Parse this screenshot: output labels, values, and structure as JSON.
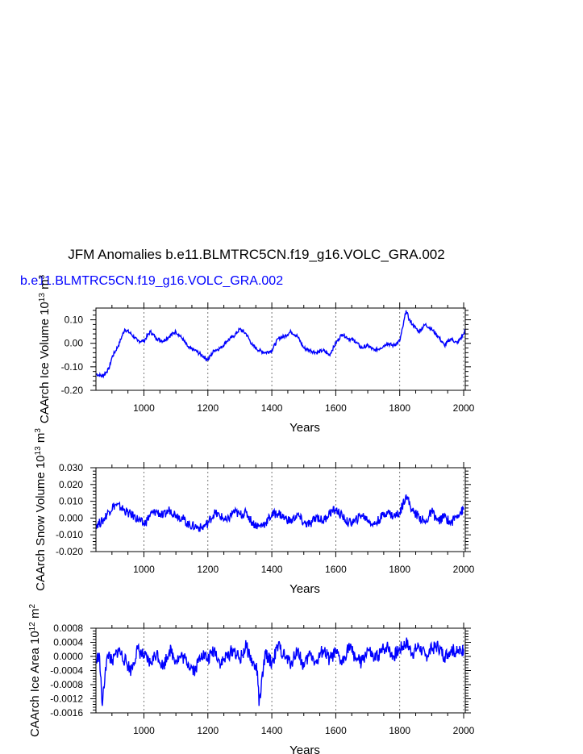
{
  "title": "JFM Anomalies b.e11.BLMTRC5CN.f19_g16.VOLC_GRA.002",
  "series_label": "b.e11.BLMTRC5CN.f19_g16.VOLC_GRA.002",
  "series_color": "#0000ff",
  "chart_data": [
    {
      "type": "line",
      "title": "",
      "xlabel": "Years",
      "ylabel_parts": [
        "CAArch Ice Volume 10",
        "13",
        " m",
        "3"
      ],
      "xlim": [
        850,
        2005
      ],
      "ylim": [
        -0.2,
        0.15
      ],
      "xticks": [
        1000,
        1200,
        1400,
        1600,
        1800,
        2000
      ],
      "yticks": [
        -0.2,
        -0.1,
        0.0,
        0.1
      ],
      "ytick_labels": [
        "-0.20",
        "-0.10",
        "0.00",
        "0.10"
      ],
      "grid": "vertical dashed at x ticks",
      "series": [
        {
          "x": [
            850,
            870,
            890,
            900,
            920,
            940,
            960,
            980,
            1000,
            1020,
            1040,
            1060,
            1080,
            1100,
            1120,
            1140,
            1160,
            1180,
            1200,
            1220,
            1240,
            1260,
            1280,
            1300,
            1320,
            1340,
            1360,
            1380,
            1400,
            1420,
            1440,
            1460,
            1480,
            1500,
            1520,
            1540,
            1560,
            1580,
            1600,
            1620,
            1640,
            1660,
            1680,
            1700,
            1720,
            1740,
            1760,
            1780,
            1800,
            1810,
            1820,
            1830,
            1840,
            1860,
            1880,
            1900,
            1920,
            1940,
            1960,
            1980,
            2000,
            2005
          ],
          "y": [
            -0.13,
            -0.14,
            -0.11,
            -0.06,
            -0.01,
            0.06,
            0.04,
            0.01,
            0.01,
            0.05,
            0.02,
            0.01,
            0.03,
            0.05,
            0.02,
            -0.02,
            -0.03,
            -0.05,
            -0.07,
            -0.03,
            -0.02,
            0.01,
            0.03,
            0.06,
            0.04,
            -0.01,
            -0.03,
            -0.04,
            -0.03,
            0.02,
            0.03,
            0.05,
            0.03,
            -0.02,
            -0.03,
            -0.04,
            -0.03,
            -0.05,
            0.0,
            0.04,
            0.02,
            0.01,
            -0.02,
            -0.01,
            -0.03,
            -0.02,
            0.0,
            -0.01,
            0.01,
            0.07,
            0.14,
            0.1,
            0.08,
            0.05,
            0.08,
            0.06,
            0.03,
            -0.01,
            0.02,
            0.0,
            0.04,
            0.06
          ]
        }
      ]
    },
    {
      "type": "line",
      "title": "",
      "xlabel": "Years",
      "ylabel_parts": [
        "CAArch Snow Volume 10",
        "13",
        " m",
        "3"
      ],
      "xlim": [
        850,
        2005
      ],
      "ylim": [
        -0.02,
        0.03
      ],
      "xticks": [
        1000,
        1200,
        1400,
        1600,
        1800,
        2000
      ],
      "yticks": [
        -0.02,
        -0.01,
        0.0,
        0.01,
        0.02,
        0.03
      ],
      "ytick_labels": [
        "-0.020",
        "-0.010",
        "0.000",
        "0.010",
        "0.020",
        "0.030"
      ],
      "grid": "vertical dashed at x ticks",
      "series": [
        {
          "x": [
            850,
            870,
            890,
            910,
            930,
            950,
            970,
            990,
            1000,
            1020,
            1040,
            1060,
            1080,
            1100,
            1120,
            1140,
            1160,
            1180,
            1200,
            1220,
            1240,
            1260,
            1280,
            1300,
            1320,
            1340,
            1360,
            1380,
            1400,
            1420,
            1440,
            1460,
            1480,
            1500,
            1520,
            1540,
            1560,
            1580,
            1600,
            1620,
            1640,
            1660,
            1680,
            1700,
            1720,
            1740,
            1760,
            1780,
            1800,
            1820,
            1840,
            1860,
            1880,
            1900,
            1920,
            1940,
            1960,
            1980,
            2000
          ],
          "y": [
            -0.004,
            -0.002,
            0.004,
            0.008,
            0.006,
            0.003,
            0.001,
            -0.002,
            -0.004,
            0.002,
            0.004,
            0.001,
            0.005,
            0.002,
            0.0,
            -0.004,
            -0.005,
            -0.006,
            -0.003,
            0.003,
            0.001,
            -0.002,
            0.004,
            0.002,
            0.003,
            -0.003,
            -0.005,
            -0.003,
            0.002,
            0.003,
            0.0,
            -0.002,
            0.002,
            -0.003,
            -0.004,
            0.001,
            -0.002,
            0.003,
            0.005,
            0.001,
            -0.003,
            -0.002,
            0.002,
            -0.001,
            -0.004,
            0.0,
            0.004,
            0.001,
            0.003,
            0.014,
            0.004,
            0.001,
            -0.003,
            0.004,
            -0.002,
            0.001,
            -0.003,
            0.002,
            0.005
          ]
        }
      ]
    },
    {
      "type": "line",
      "title": "",
      "xlabel": "Years",
      "ylabel_parts": [
        "CAArch Ice Area 10",
        "12",
        " m",
        "2"
      ],
      "xlim": [
        850,
        2005
      ],
      "ylim": [
        -0.0016,
        0.0008
      ],
      "xticks": [
        1000,
        1200,
        1400,
        1600,
        1800,
        2000
      ],
      "yticks": [
        -0.0016,
        -0.0012,
        -0.0008,
        -0.0004,
        0.0,
        0.0004,
        0.0008
      ],
      "ytick_labels": [
        "-0.0016",
        "-0.0012",
        "-0.0008",
        "-0.0004",
        "0.0000",
        "0.0004",
        "0.0008"
      ],
      "grid": "vertical dashed at x ticks",
      "series": [
        {
          "x": [
            850,
            860,
            870,
            880,
            890,
            900,
            920,
            940,
            960,
            980,
            1000,
            1020,
            1040,
            1060,
            1080,
            1100,
            1120,
            1140,
            1160,
            1180,
            1200,
            1220,
            1240,
            1260,
            1280,
            1300,
            1320,
            1340,
            1355,
            1360,
            1380,
            1400,
            1420,
            1440,
            1460,
            1480,
            1500,
            1520,
            1540,
            1560,
            1580,
            1600,
            1620,
            1640,
            1660,
            1680,
            1700,
            1720,
            1740,
            1760,
            1780,
            1800,
            1820,
            1840,
            1860,
            1880,
            1900,
            1920,
            1940,
            1960,
            1980,
            2000
          ],
          "y": [
            -0.0002,
            0.0001,
            -0.0014,
            -0.0003,
            0.0001,
            -0.0002,
            0.0002,
            -0.0001,
            -0.0004,
            0.0002,
            0.0,
            -0.0002,
            0.0001,
            -0.0003,
            0.0002,
            -0.0001,
            0.0,
            -0.0002,
            -0.0004,
            0.0001,
            -0.0001,
            0.0002,
            -0.0002,
            0.0,
            0.0002,
            -0.0001,
            0.0003,
            -0.0002,
            -0.0004,
            -0.0014,
            0.0001,
            -0.0002,
            0.0003,
            0.0,
            -0.0002,
            0.0002,
            -0.0003,
            0.0001,
            -0.0002,
            0.0002,
            -0.0001,
            0.0001,
            -0.0002,
            0.0003,
            0.0,
            -0.0002,
            0.0002,
            -0.0001,
            0.0001,
            0.0003,
            0.0,
            0.0002,
            0.0004,
            0.0001,
            0.0003,
            0.0,
            0.0002,
            0.0003,
            0.0,
            0.0002,
            0.0001,
            0.0002
          ]
        }
      ]
    }
  ]
}
